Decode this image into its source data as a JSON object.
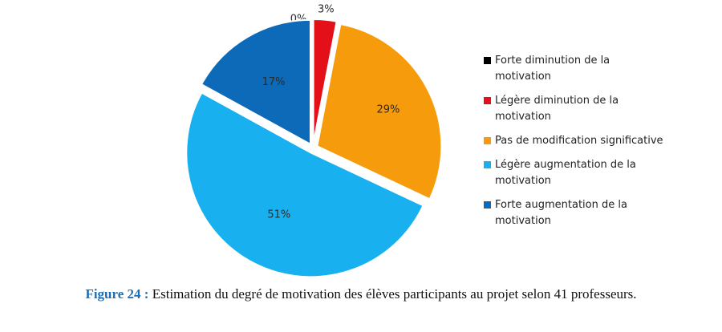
{
  "chart_data": {
    "type": "pie",
    "title": "",
    "slices": [
      {
        "label": "Forte diminution  de la motivation",
        "value": 0,
        "value_label": "0%",
        "color": "#000000"
      },
      {
        "label": "Légère diminution de la motivation",
        "value": 3,
        "value_label": "3%",
        "color": "#e3101a"
      },
      {
        "label": "Pas de modification significative",
        "value": 29,
        "value_label": "29%",
        "color": "#f59b0c"
      },
      {
        "label": "Légère augmentation  de la motivation",
        "value": 51,
        "value_label": "51%",
        "color": "#18b0ee"
      },
      {
        "label": "Forte augmentation  de la motivation",
        "value": 17,
        "value_label": "17%",
        "color": "#0d6ab9"
      }
    ],
    "legend_position": "right"
  },
  "caption": {
    "prefix": "Figure 24 :",
    "text": "Estimation du degré de motivation des élèves participants au projet selon 41 professeurs."
  }
}
